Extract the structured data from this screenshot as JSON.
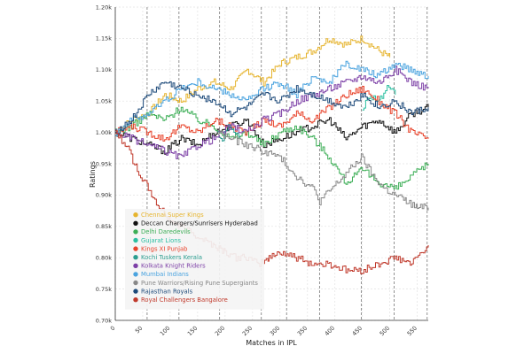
{
  "chart_data": {
    "type": "line",
    "title": "",
    "xlabel": "Matches in IPL",
    "ylabel": "Ratings",
    "xlim": [
      0,
      570
    ],
    "ylim": [
      0.7,
      1.2
    ],
    "x_ticks": [
      0,
      50,
      100,
      150,
      200,
      250,
      300,
      350,
      400,
      450,
      500,
      550
    ],
    "x_tick_labels": [
      "0",
      "50",
      "100",
      "150",
      "200",
      "250",
      "300",
      "350",
      "400",
      "450",
      "500",
      "550"
    ],
    "y_ticks": [
      0.7,
      0.75,
      0.8,
      0.85,
      0.9,
      0.95,
      1.0,
      1.05,
      1.1,
      1.15,
      1.2
    ],
    "y_tick_labels": [
      "0.70k",
      "0.75k",
      "0.80k",
      "0.85k",
      "0.90k",
      "0.95k",
      "1.00k",
      "1.05k",
      "1.10k",
      "1.15k",
      "1.20k"
    ],
    "season_boundaries": [
      58,
      116,
      190,
      266,
      312,
      372,
      448,
      508,
      568
    ],
    "grid": true,
    "legend_position": "left",
    "series": [
      {
        "name": "Chennai Super Kings",
        "color": "#e6b42e",
        "x": [
          0,
          30,
          60,
          90,
          120,
          150,
          180,
          210,
          240,
          270,
          300,
          330,
          360,
          390,
          420,
          450,
          480,
          500
        ],
        "y": [
          1.0,
          1.02,
          1.03,
          1.06,
          1.05,
          1.07,
          1.08,
          1.07,
          1.1,
          1.08,
          1.11,
          1.12,
          1.13,
          1.15,
          1.14,
          1.15,
          1.13,
          1.12
        ]
      },
      {
        "name": "Deccan Chargers/Sunrisers Hyderabad",
        "color": "#111111",
        "x": [
          0,
          30,
          60,
          90,
          120,
          150,
          180,
          210,
          240,
          270,
          300,
          330,
          360,
          390,
          420,
          450,
          480,
          510,
          540,
          570
        ],
        "y": [
          1.0,
          0.99,
          0.98,
          0.97,
          0.99,
          0.98,
          1.0,
          1.01,
          1.02,
          0.98,
          0.99,
          1.0,
          1.01,
          1.02,
          0.99,
          1.01,
          1.02,
          1.0,
          1.03,
          1.04
        ]
      },
      {
        "name": "Delhi Daredevils",
        "color": "#3cae56",
        "x": [
          0,
          30,
          60,
          90,
          120,
          150,
          180,
          210,
          240,
          270,
          300,
          330,
          360,
          390,
          420,
          450,
          480,
          510,
          540,
          570
        ],
        "y": [
          1.0,
          1.01,
          1.03,
          1.02,
          1.04,
          1.02,
          1.01,
          0.99,
          1.0,
          0.98,
          1.0,
          1.01,
          0.99,
          0.96,
          0.92,
          0.94,
          0.92,
          0.91,
          0.93,
          0.95
        ]
      },
      {
        "name": "Gujarat Lions",
        "color": "#2bbfa1",
        "x": [
          450,
          465,
          480,
          495,
          510
        ],
        "y": [
          1.04,
          1.06,
          1.05,
          1.07,
          1.06
        ]
      },
      {
        "name": "Kings XI Punjab",
        "color": "#e8432b",
        "x": [
          0,
          30,
          60,
          90,
          120,
          150,
          180,
          210,
          240,
          270,
          300,
          330,
          360,
          390,
          420,
          450,
          480,
          510,
          540,
          570
        ],
        "y": [
          1.0,
          1.01,
          1.0,
          0.99,
          1.01,
          1.0,
          1.02,
          1.01,
          1.0,
          1.02,
          1.01,
          1.03,
          1.02,
          1.04,
          1.06,
          1.07,
          1.05,
          1.03,
          1.0,
          0.99
        ]
      },
      {
        "name": "Kochi Tuskers Kerala",
        "color": "#2a9d8f",
        "x": [
          186,
          196,
          206,
          216,
          226
        ],
        "y": [
          1.0,
          0.99,
          1.01,
          1.0,
          0.99
        ]
      },
      {
        "name": "Kolkata Knight Riders",
        "color": "#7c3fa6",
        "x": [
          0,
          30,
          60,
          90,
          120,
          150,
          180,
          210,
          240,
          270,
          300,
          330,
          360,
          390,
          420,
          450,
          480,
          510,
          540,
          570
        ],
        "y": [
          1.0,
          0.99,
          0.98,
          0.97,
          0.96,
          0.98,
          0.99,
          1.01,
          1.0,
          1.02,
          1.03,
          1.05,
          1.06,
          1.07,
          1.08,
          1.09,
          1.08,
          1.1,
          1.08,
          1.07
        ]
      },
      {
        "name": "Mumbai Indians",
        "color": "#4aa3df",
        "x": [
          0,
          30,
          60,
          90,
          120,
          150,
          180,
          210,
          240,
          270,
          300,
          330,
          360,
          390,
          420,
          450,
          480,
          510,
          540,
          570
        ],
        "y": [
          1.0,
          1.02,
          1.03,
          1.05,
          1.07,
          1.08,
          1.07,
          1.06,
          1.05,
          1.07,
          1.08,
          1.06,
          1.09,
          1.08,
          1.11,
          1.1,
          1.09,
          1.11,
          1.1,
          1.09
        ]
      },
      {
        "name": "Pune Warriors/Rising Pune Supergiants",
        "color": "#888888",
        "x": [
          186,
          210,
          240,
          270,
          300,
          330,
          360,
          372,
          448,
          470,
          490,
          510,
          530,
          550,
          570
        ],
        "y": [
          1.0,
          0.99,
          0.98,
          0.97,
          0.96,
          0.93,
          0.91,
          0.89,
          0.96,
          0.93,
          0.91,
          0.9,
          0.89,
          0.88,
          0.88
        ]
      },
      {
        "name": "Rajasthan Royals",
        "color": "#1d4a7a",
        "x": [
          0,
          30,
          60,
          90,
          120,
          150,
          180,
          210,
          240,
          270,
          300,
          330,
          360,
          390,
          420,
          450,
          480,
          510,
          540,
          570
        ],
        "y": [
          1.0,
          1.02,
          1.06,
          1.08,
          1.07,
          1.06,
          1.05,
          1.03,
          1.04,
          1.06,
          1.05,
          1.07,
          1.06,
          1.05,
          1.04,
          1.06,
          1.04,
          1.05,
          1.03,
          1.04
        ]
      },
      {
        "name": "Royal Challengers Bangalore",
        "color": "#c0392b",
        "x": [
          0,
          20,
          40,
          60,
          80,
          100,
          120,
          140,
          160,
          180,
          200,
          220,
          240,
          260,
          280,
          300,
          330,
          360,
          390,
          420,
          450,
          480,
          510,
          540,
          570
        ],
        "y": [
          1.0,
          0.98,
          0.94,
          0.91,
          0.88,
          0.86,
          0.85,
          0.84,
          0.83,
          0.82,
          0.81,
          0.8,
          0.8,
          0.79,
          0.8,
          0.81,
          0.8,
          0.79,
          0.79,
          0.78,
          0.78,
          0.79,
          0.8,
          0.79,
          0.82
        ]
      }
    ]
  }
}
